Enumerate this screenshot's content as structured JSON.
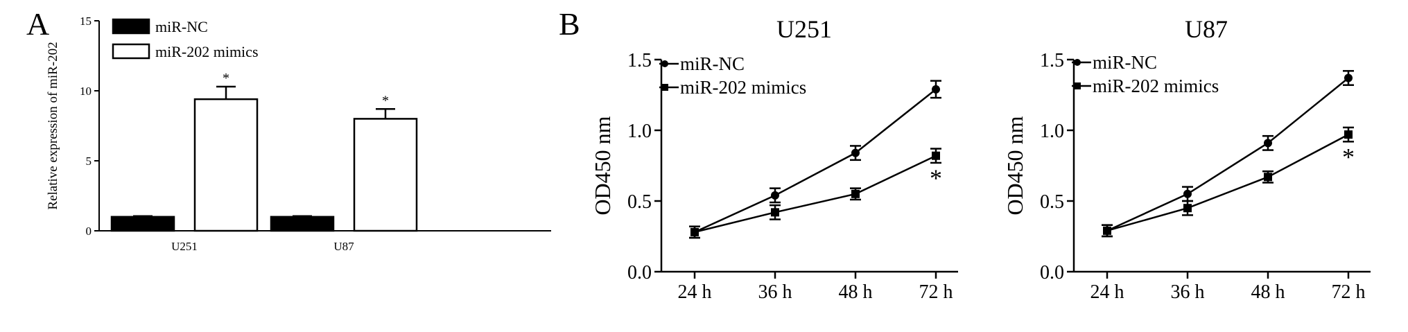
{
  "panel_labels": {
    "a": "A",
    "b": "B"
  },
  "chart_data": [
    {
      "id": "panelA",
      "type": "bar",
      "title": "",
      "xlabel": "",
      "ylabel": "Relative expression of miR-202",
      "categories": [
        "U251",
        "U87"
      ],
      "ylim": [
        0,
        15
      ],
      "yticks": [
        0,
        5,
        10,
        15
      ],
      "series": [
        {
          "name": "miR-NC",
          "color": "#000000",
          "values": [
            1.0,
            1.0
          ],
          "errors": [
            0.05,
            0.05
          ]
        },
        {
          "name": "miR-202 mimics",
          "color": "#ffffff",
          "values": [
            9.4,
            8.0
          ],
          "errors": [
            0.9,
            0.7
          ],
          "annotations": [
            "*",
            "*"
          ]
        }
      ],
      "legend_position": "top-left"
    },
    {
      "id": "panelB1",
      "type": "line",
      "title": "U251",
      "xlabel": "",
      "ylabel": "OD450 nm",
      "categories": [
        "24 h",
        "36 h",
        "48 h",
        "72 h"
      ],
      "ylim": [
        0,
        1.5
      ],
      "yticks": [
        "0.0",
        "0.5",
        "1.0",
        "1.5"
      ],
      "series": [
        {
          "name": "miR-NC",
          "marker": "circle",
          "values": [
            0.28,
            0.54,
            0.84,
            1.29
          ],
          "errors": [
            0.04,
            0.05,
            0.05,
            0.06
          ]
        },
        {
          "name": "miR-202 mimics",
          "marker": "square",
          "values": [
            0.28,
            0.42,
            0.55,
            0.82
          ],
          "errors": [
            0.04,
            0.05,
            0.04,
            0.05
          ]
        }
      ],
      "annotation": {
        "text": "*",
        "category": "72 h"
      },
      "legend_position": "top-left"
    },
    {
      "id": "panelB2",
      "type": "line",
      "title": "U87",
      "xlabel": "",
      "ylabel": "OD450 nm",
      "categories": [
        "24 h",
        "36 h",
        "48 h",
        "72 h"
      ],
      "ylim": [
        0,
        1.5
      ],
      "yticks": [
        "0.0",
        "0.5",
        "1.0",
        "1.5"
      ],
      "series": [
        {
          "name": "miR-NC",
          "marker": "circle",
          "values": [
            0.29,
            0.55,
            0.91,
            1.37
          ],
          "errors": [
            0.04,
            0.05,
            0.05,
            0.05
          ]
        },
        {
          "name": "miR-202 mimics",
          "marker": "square",
          "values": [
            0.29,
            0.45,
            0.67,
            0.97
          ],
          "errors": [
            0.04,
            0.05,
            0.04,
            0.05
          ]
        }
      ],
      "annotation": {
        "text": "*",
        "category": "72 h"
      },
      "legend_position": "top-left"
    }
  ]
}
